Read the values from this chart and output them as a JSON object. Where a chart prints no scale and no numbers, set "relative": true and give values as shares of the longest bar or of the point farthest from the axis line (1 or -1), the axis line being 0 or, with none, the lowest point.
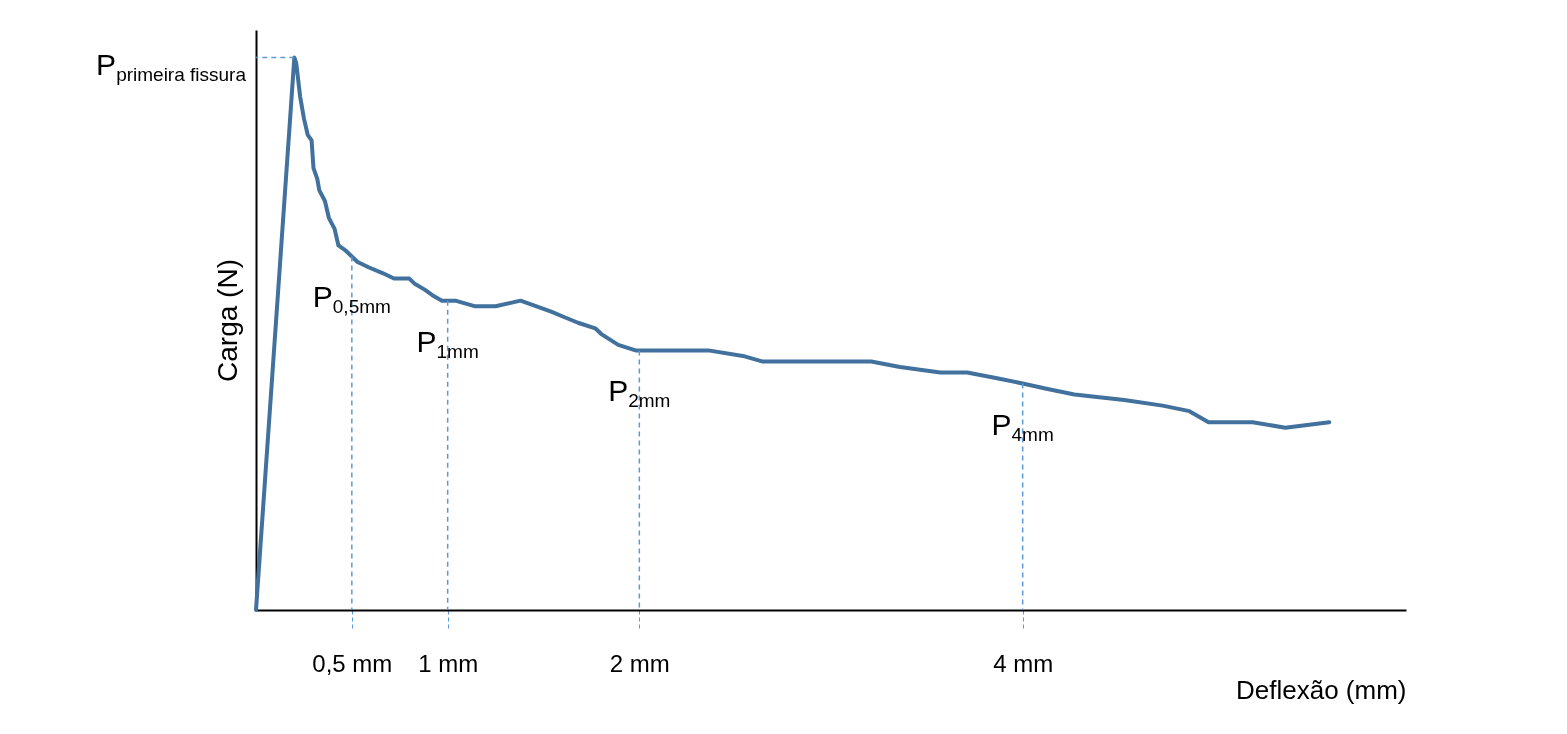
{
  "chart_data": {
    "type": "line",
    "relative": true,
    "xlabel": "Deflexão (mm)",
    "ylabel": "Carga (N)",
    "xlim": [
      0,
      6
    ],
    "xticks": [
      {
        "value": 0.5,
        "label": "0,5 mm"
      },
      {
        "value": 1,
        "label": "1 mm"
      },
      {
        "value": 2,
        "label": "2 mm"
      },
      {
        "value": 4,
        "label": "4 mm"
      }
    ],
    "x": [
      0,
      0.2,
      0.21,
      0.23,
      0.25,
      0.27,
      0.29,
      0.3,
      0.32,
      0.33,
      0.36,
      0.38,
      0.41,
      0.43,
      0.47,
      0.5,
      0.53,
      0.59,
      0.66,
      0.72,
      0.8,
      0.83,
      0.88,
      0.92,
      0.97,
      1.04,
      1.14,
      1.25,
      1.38,
      1.46,
      1.54,
      1.61,
      1.68,
      1.77,
      1.8,
      1.89,
      1.98,
      2.14,
      2.36,
      2.54,
      2.64,
      2.79,
      3.0,
      3.21,
      3.36,
      3.57,
      3.71,
      3.86,
      4.0,
      4.13,
      4.27,
      4.53,
      4.73,
      4.87,
      4.97,
      5.2,
      5.37,
      5.6
    ],
    "series": [
      {
        "color": "#41719c",
        "values": [
          0,
          1,
          0.99,
          0.93,
          0.89,
          0.86,
          0.85,
          0.8,
          0.78,
          0.76,
          0.74,
          0.71,
          0.69,
          0.66,
          0.65,
          0.64,
          0.63,
          0.62,
          0.61,
          0.6,
          0.6,
          0.59,
          0.58,
          0.57,
          0.56,
          0.56,
          0.55,
          0.55,
          0.56,
          0.55,
          0.54,
          0.53,
          0.52,
          0.51,
          0.5,
          0.48,
          0.47,
          0.47,
          0.47,
          0.46,
          0.45,
          0.45,
          0.45,
          0.45,
          0.44,
          0.43,
          0.43,
          0.42,
          0.41,
          0.4,
          0.39,
          0.38,
          0.37,
          0.36,
          0.34,
          0.34,
          0.33,
          0.34
        ]
      }
    ],
    "annotations": [
      {
        "text": "P$_{primeira fissura}$",
        "x": 0.2,
        "y": 1
      },
      {
        "text": "P$_{0,5mm}$",
        "x": 0.5,
        "y": 0.64
      },
      {
        "text": "P$_{1mm}$",
        "x": 1,
        "y": 0.56
      },
      {
        "text": "P$_{2mm}$",
        "x": 2,
        "y": 0.47
      },
      {
        "text": "P$_{4mm}$",
        "x": 4,
        "y": 0.41
      }
    ],
    "grid": false
  }
}
